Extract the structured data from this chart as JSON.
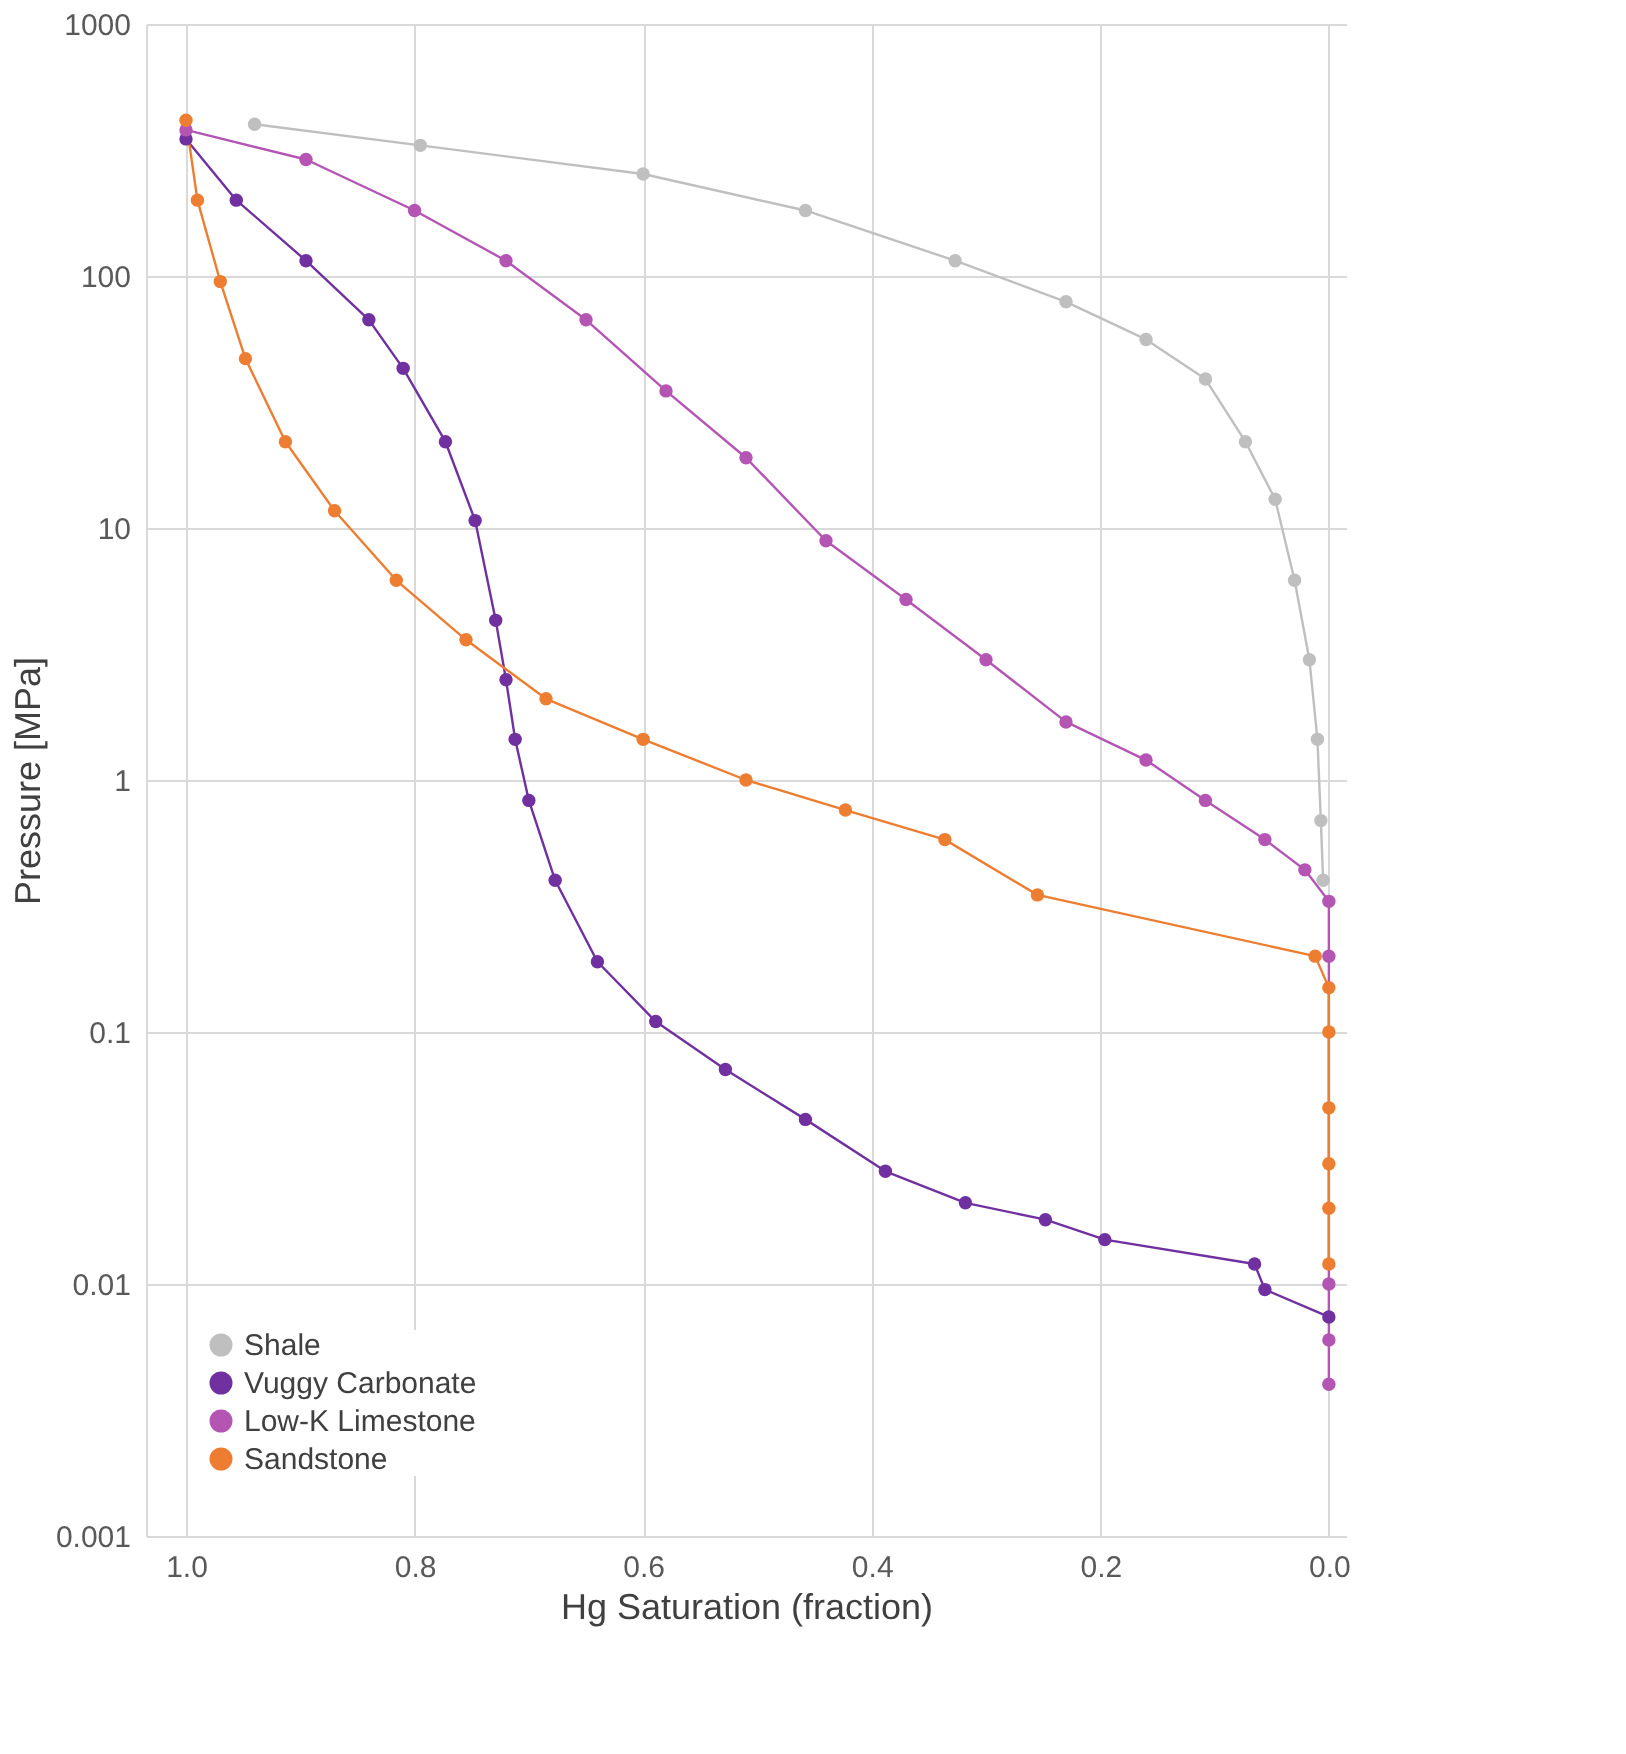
{
  "chart_data": {
    "type": "line",
    "xlabel": "Hg Saturation (fraction)",
    "ylabel": "Pressure [MPa]",
    "log": "y",
    "marker": "circle",
    "grid": true,
    "legend": "bottom left",
    "xlim": [
      1.035,
      -0.015
    ],
    "xticks": [
      {
        "value": 1.0,
        "label": "1.0"
      },
      {
        "value": 0.8,
        "label": "0.8"
      },
      {
        "value": 0.6,
        "label": "0.6"
      },
      {
        "value": 0.4,
        "label": "0.4"
      },
      {
        "value": 0.2,
        "label": "0.2"
      },
      {
        "value": 0.0,
        "label": "0.0"
      }
    ],
    "ylim": [
      0.001,
      1000
    ],
    "yticks": [
      0.001,
      0.01,
      0.1,
      1,
      10,
      100,
      1000
    ],
    "series": [
      {
        "name": "Shale",
        "color": "#bfbfbf",
        "x": [
          0.94,
          0.795,
          0.6,
          0.458,
          0.327,
          0.23,
          0.16,
          0.108,
          0.073,
          0.047,
          0.03,
          0.017,
          0.01,
          0.007,
          0.005
        ],
        "values": [
          400,
          330,
          254,
          182,
          115,
          79,
          56,
          39,
          22,
          13,
          6.2,
          3.0,
          1.45,
          0.69,
          0.4
        ]
      },
      {
        "name": "Vuggy Carbonate",
        "color": "#7030a0",
        "x": [
          1.0,
          0.956,
          0.895,
          0.84,
          0.81,
          0.773,
          0.747,
          0.729,
          0.72,
          0.712,
          0.7,
          0.677,
          0.64,
          0.589,
          0.528,
          0.458,
          0.388,
          0.318,
          0.248,
          0.196,
          0.065,
          0.056,
          0.0
        ],
        "values": [
          350,
          200,
          115,
          67,
          43,
          22,
          10.7,
          4.3,
          2.5,
          1.45,
          0.83,
          0.4,
          0.19,
          0.11,
          0.071,
          0.045,
          0.028,
          0.021,
          0.018,
          0.015,
          0.012,
          0.0095,
          0.0074
        ]
      },
      {
        "name": "Low-K Limestone",
        "color": "#b455b4",
        "x": [
          1.0,
          0.895,
          0.8,
          0.72,
          0.65,
          0.58,
          0.51,
          0.44,
          0.37,
          0.3,
          0.23,
          0.16,
          0.108,
          0.056,
          0.021,
          0.0,
          0.0,
          0.0,
          0.0,
          0.0
        ],
        "values": [
          380,
          290,
          182,
          115,
          67,
          35,
          19,
          8.9,
          5.2,
          3.0,
          1.7,
          1.2,
          0.83,
          0.58,
          0.44,
          0.33,
          0.2,
          0.01,
          0.006,
          0.004
        ]
      },
      {
        "name": "Sandstone",
        "color": "#ed7d31",
        "x": [
          1.0,
          0.99,
          0.97,
          0.948,
          0.913,
          0.87,
          0.816,
          0.755,
          0.685,
          0.6,
          0.51,
          0.423,
          0.336,
          0.255,
          0.012,
          0.0,
          0.0,
          0.0,
          0.0,
          0.0,
          0.0
        ],
        "values": [
          415,
          200,
          95,
          47,
          22,
          11.7,
          6.2,
          3.6,
          2.1,
          1.45,
          1.0,
          0.76,
          0.58,
          0.35,
          0.2,
          0.15,
          0.1,
          0.05,
          0.03,
          0.02,
          0.012
        ]
      }
    ]
  }
}
